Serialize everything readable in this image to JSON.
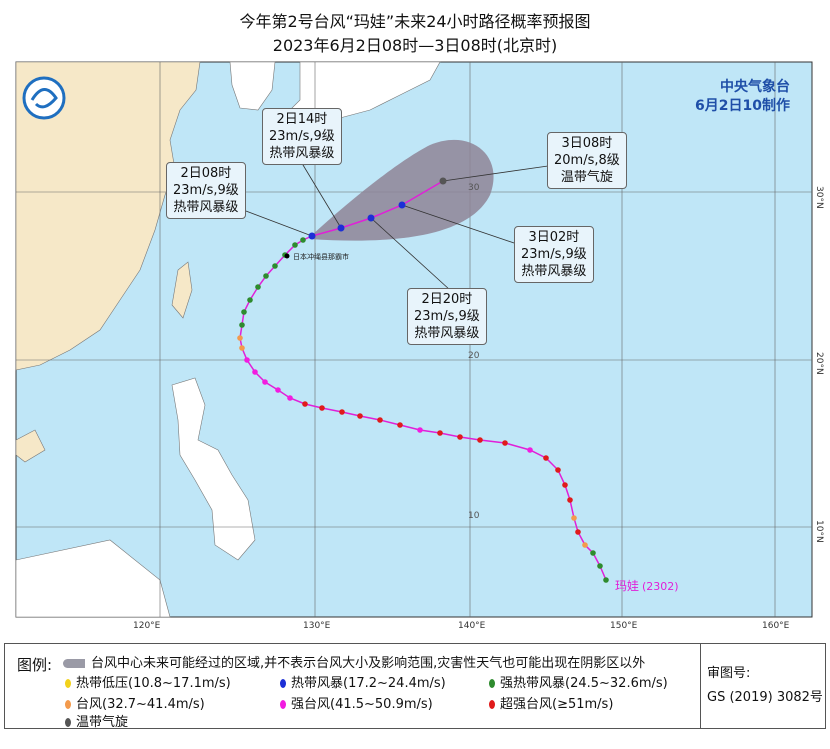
{
  "title": "今年第2号台风“玛娃”未来24小时路径概率预报图",
  "subtitle": "2023年6月2日08时—3日08时(北京时)",
  "agency": {
    "name": "中央气象台",
    "issued": "6月2日10制作"
  },
  "map": {
    "lon_labels": [
      "120°E",
      "130°E",
      "140°E",
      "150°E",
      "160°E"
    ],
    "lat_labels": [
      "30°N",
      "20°N",
      "10°N"
    ],
    "grid_labels": [
      "30",
      "20",
      "10"
    ],
    "place_label": "日本冲绳县那霸市",
    "typhoon_label": "玛娃",
    "typhoon_code": "(2302)"
  },
  "callouts": [
    {
      "time": "2日08时",
      "wind": "23m/s,9级",
      "level": "热带风暴级"
    },
    {
      "time": "2日14时",
      "wind": "23m/s,9级",
      "level": "热带风暴级"
    },
    {
      "time": "2日20时",
      "wind": "23m/s,9级",
      "level": "热带风暴级"
    },
    {
      "time": "3日02时",
      "wind": "23m/s,9级",
      "level": "热带风暴级"
    },
    {
      "time": "3日08时",
      "wind": "20m/s,8级",
      "level": "温带气旋"
    }
  ],
  "legend": {
    "title": "图例:",
    "cone": "台风中心未来可能经过的区域,并不表示台风大小及影响范围,灾害性天气也可能出现在阴影区以外",
    "items": [
      {
        "label": "热带低压(10.8~17.1m/s)",
        "color": "#f2d21b"
      },
      {
        "label": "热带风暴(17.2~24.4m/s)",
        "color": "#1c2fd6"
      },
      {
        "label": "强热带风暴(24.5~32.6m/s)",
        "color": "#2e8b2e"
      },
      {
        "label": "台风(32.7~41.4m/s)",
        "color": "#f39a4c"
      },
      {
        "label": "强台风(41.5~50.9m/s)",
        "color": "#f21ce0"
      },
      {
        "label": "超强台风(≥51m/s)",
        "color": "#e01b1b"
      },
      {
        "label": "温带气旋",
        "color": "#555555"
      }
    ],
    "approval_label": "审图号:",
    "approval_no": "GS (2019) 3082号"
  }
}
